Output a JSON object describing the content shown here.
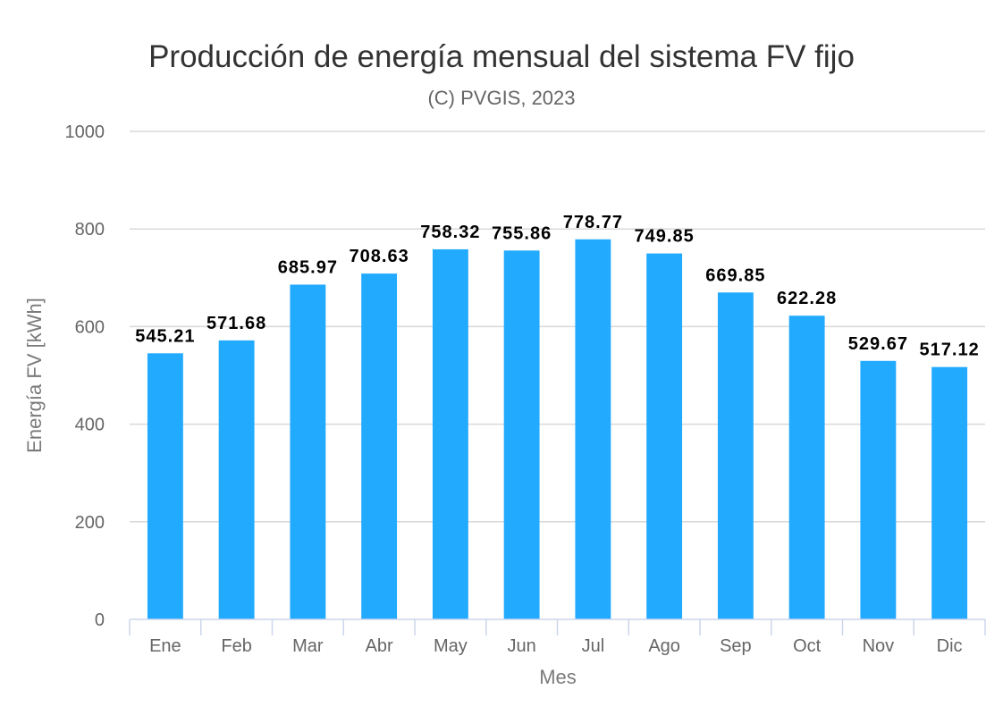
{
  "chart_data": {
    "type": "bar",
    "title": "Producción de energía mensual del sistema FV fijo",
    "subtitle": "(C) PVGIS, 2023",
    "xlabel": "Mes",
    "ylabel": "Energía FV [kWh]",
    "categories": [
      "Ene",
      "Feb",
      "Mar",
      "Abr",
      "May",
      "Jun",
      "Jul",
      "Ago",
      "Sep",
      "Oct",
      "Nov",
      "Dic"
    ],
    "values": [
      545.21,
      571.68,
      685.97,
      708.63,
      758.32,
      755.86,
      778.77,
      749.85,
      669.85,
      622.28,
      529.67,
      517.12
    ],
    "data_labels": [
      "545.21",
      "571.68",
      "685.97",
      "708.63",
      "758.32",
      "755.86",
      "778.77",
      "749.85",
      "669.85",
      "622.28",
      "529.67",
      "517.12"
    ],
    "ylim": [
      0,
      1000
    ],
    "yticks": [
      0,
      200,
      400,
      600,
      800,
      1000
    ],
    "ytick_labels": [
      "0",
      "200",
      "400",
      "600",
      "800",
      "1000"
    ],
    "grid": true,
    "legend": "none",
    "colors": {
      "bar": "#22aaff",
      "grid": "#d9d9d9",
      "axis": "#ccd6eb"
    }
  }
}
